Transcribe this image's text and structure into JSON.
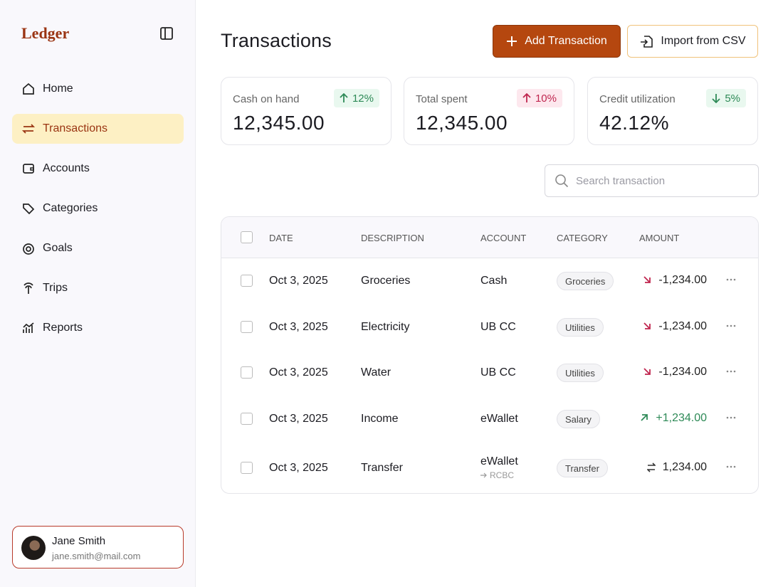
{
  "sidebar": {
    "brand": "Ledger",
    "nav": [
      "Home",
      "Transactions",
      "Accounts",
      "Categories",
      "Goals",
      "Trips",
      "Reports"
    ],
    "user": {
      "name": "Jane Smith",
      "email": "jane.smith@mail.com"
    }
  },
  "header": {
    "title": "Transactions",
    "buttons": [
      "Add Transaction",
      "Import from CSV"
    ]
  },
  "stats": [
    {
      "label": "Cash on hand",
      "value": "12,345.00",
      "change": "12%"
    },
    {
      "label": "Total spent",
      "value": "12,345.00",
      "change": "10%"
    },
    {
      "label": "Credit utilization",
      "value": "42.12%",
      "change": "5%"
    }
  ],
  "search": {
    "placeholder": "Search transaction"
  },
  "table": {
    "columns": [
      "DATE",
      "DESCRIPTION",
      "ACCOUNT",
      "CATEGORY",
      "AMOUNT"
    ],
    "rows": [
      {
        "date": "Oct 3, 2025",
        "description": "Groceries",
        "account": "Cash",
        "category": "Groceries",
        "amount": "-1,234.00"
      },
      {
        "date": "Oct 3, 2025",
        "description": "Electricity",
        "account": "UB CC",
        "category": "Utilities",
        "amount": "-1,234.00"
      },
      {
        "date": "Oct 3, 2025",
        "description": "Water",
        "account": "UB CC",
        "category": "Utilities",
        "amount": "-1,234.00"
      },
      {
        "date": "Oct 3, 2025",
        "description": "Income",
        "account": "eWallet",
        "category": "Salary",
        "amount": "+1,234.00"
      },
      {
        "date": "Oct 3, 2025",
        "description": "Transfer",
        "account": "eWallet",
        "account_to": "RCBC",
        "category": "Transfer",
        "amount": "1,234.00"
      }
    ]
  }
}
